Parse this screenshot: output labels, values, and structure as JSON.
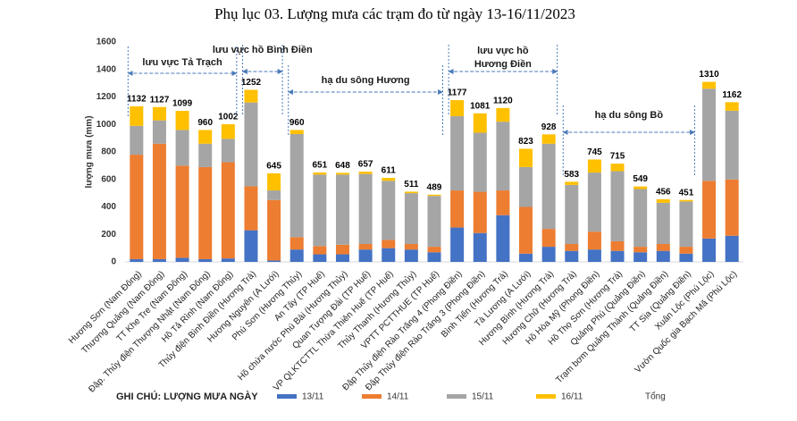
{
  "chart_data": {
    "type": "stacked_bar",
    "title": "Phụ lục 03. Lượng mưa các trạm đo từ ngày 13-16/11/2023",
    "y_label": "lượng mưa (mm)",
    "legend_note": "GHI CHÚ: LƯỢNG MƯA NGÀY",
    "total_label": "Tổng",
    "categories": [
      "Hương Sơn (Nam Đông)",
      "Thượng Quảng (Nam Đông)",
      "TT Khe Tre (Nam Đông)",
      "Đập. Thủy điện Thượng Nhật (Nam Đông)",
      "Hồ Tả Rình (Nam Đông)",
      "Thủy điện Bình Điền (Hương Trà)",
      "Hương Nguyên (A Lưới)",
      "Phú Sơn (Hương Thủy)",
      "An Tây (TP Huế)",
      "Hồ chứa nước Phú Bài (Hương Thủy)",
      "Quan Tượng Đài (TP Huế)",
      "VP QLKTCTTL Thừa Thiên Huế (TP Huế)",
      "Thủy Thanh (Hương Thủy)",
      "VPTT PCTTHUE (TP Huế)",
      "Đập Thủy điện Rào Trăng 4 (Phong Điền)",
      "Đập Thủy điện Rào Trăng 3 (Phong Điền)",
      "Bình Tiến (Hương Trà)",
      "Tà Lương (A Lưới)",
      "Hương Bình (Hương Trà)",
      "Hương Chữ (Hương Trà)",
      "Hồ Hòa Mỹ (Phong Điền)",
      "Hồ Thọ Sơn (Hương Trà)",
      "Quảng Phú (Quảng Điền)",
      "Trạm bơm Quảng Thành (Quảng Điền)",
      "TT Sịa (Quảng Điền)",
      "Xuân Lộc (Phú Lộc)",
      "Vườn Quốc gia Bạch Mã (Phú Lộc)"
    ],
    "series": [
      {
        "name": "13/11",
        "color": "#4472c4",
        "values": [
          20,
          20,
          30,
          20,
          25,
          230,
          10,
          90,
          55,
          55,
          90,
          100,
          90,
          70,
          250,
          210,
          340,
          60,
          110,
          80,
          90,
          80,
          70,
          80,
          60,
          170,
          190
        ]
      },
      {
        "name": "14/11",
        "color": "#ed7d31",
        "values": [
          760,
          840,
          670,
          670,
          700,
          320,
          440,
          90,
          60,
          70,
          40,
          60,
          40,
          40,
          270,
          300,
          180,
          340,
          130,
          50,
          130,
          70,
          40,
          50,
          50,
          420,
          410
        ]
      },
      {
        "name": "15/11",
        "color": "#a5a5a5",
        "values": [
          210,
          170,
          260,
          170,
          170,
          610,
          70,
          750,
          520,
          510,
          510,
          430,
          370,
          370,
          540,
          430,
          500,
          290,
          620,
          430,
          430,
          510,
          420,
          300,
          330,
          670,
          500
        ]
      },
      {
        "name": "16/11",
        "color": "#ffc000",
        "values": [
          142,
          97,
          139,
          100,
          107,
          92,
          125,
          30,
          16,
          13,
          17,
          21,
          11,
          9,
          117,
          141,
          100,
          133,
          68,
          23,
          95,
          55,
          19,
          26,
          11,
          50,
          62
        ]
      }
    ],
    "totals": [
      1132,
      1127,
      1099,
      960,
      1002,
      1252,
      645,
      960,
      651,
      648,
      657,
      611,
      511,
      489,
      1177,
      1081,
      1120,
      823,
      928,
      583,
      745,
      715,
      549,
      456,
      451,
      1310,
      1162
    ],
    "annotations": [
      {
        "lines": [
          "lưu vực Tả Trạch"
        ]
      },
      {
        "lines": [
          "lưu vực hồ Bình Điền"
        ]
      },
      {
        "lines": [
          "hạ du sông Hương"
        ]
      },
      {
        "lines": [
          "lưu vực hồ",
          "Hương Điền"
        ]
      },
      {
        "lines": [
          "hạ du sông Bồ"
        ]
      }
    ],
    "ylim": [
      0,
      1600
    ],
    "yticks": [
      0,
      200,
      400,
      600,
      800,
      1000,
      1200,
      1400,
      1600
    ],
    "grid": false
  }
}
